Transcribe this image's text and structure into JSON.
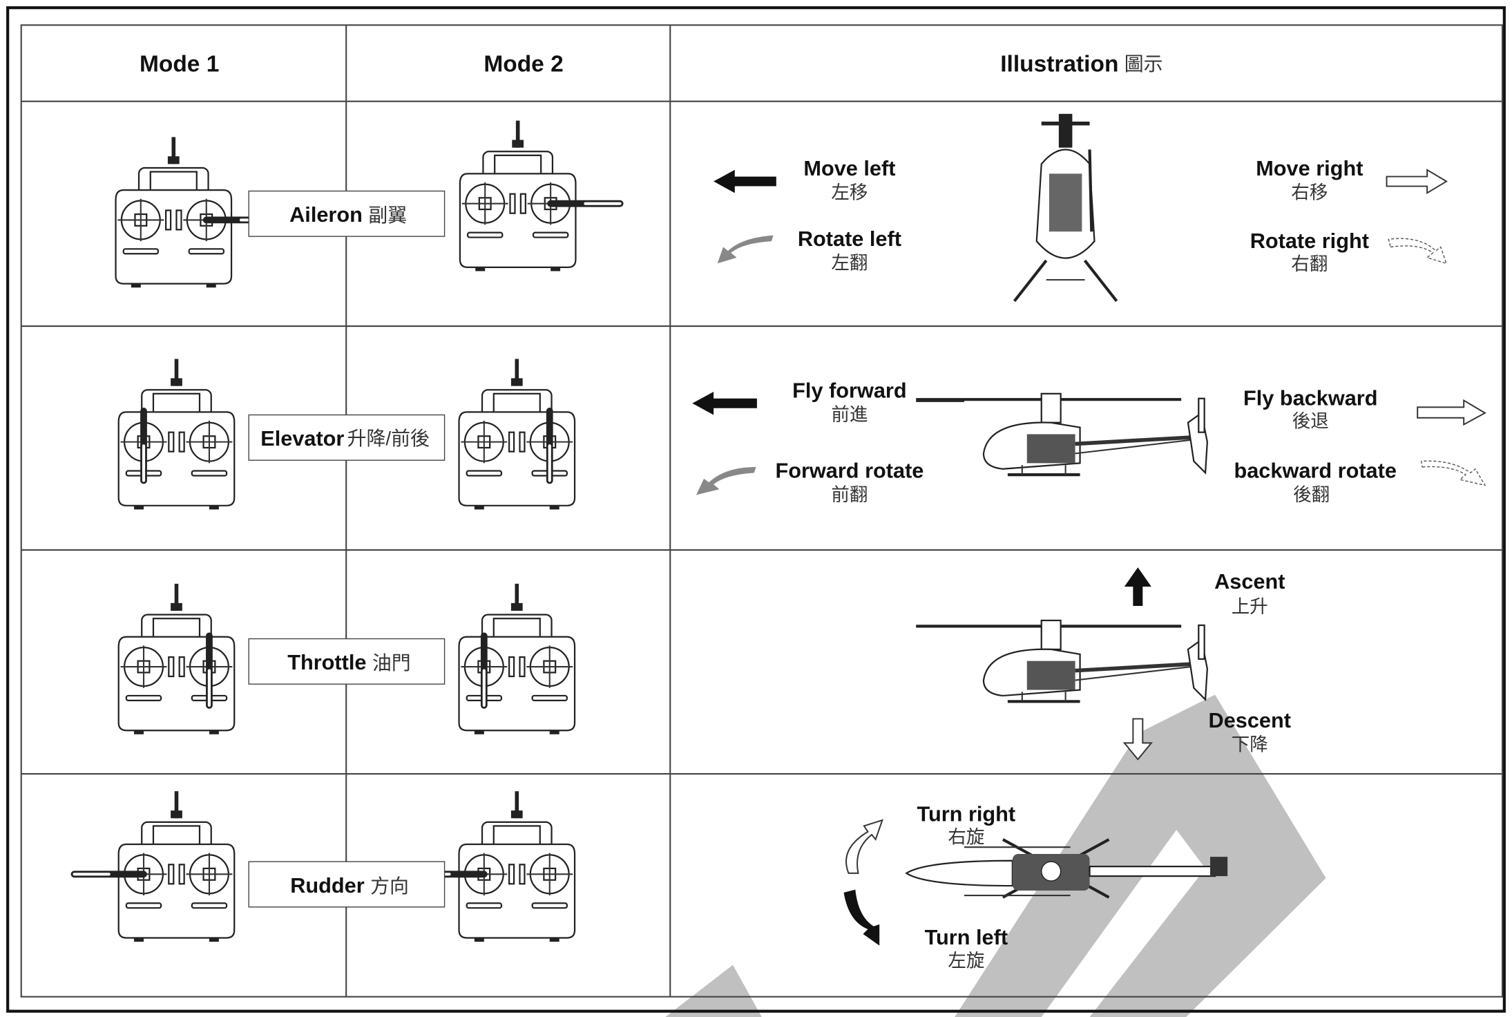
{
  "header": {
    "mode_1": "Mode 1",
    "mode_2": "Mode 2",
    "illustration": "Illustration",
    "illustration_zh": "圖示"
  },
  "rows": [
    {
      "function": "Aileron",
      "function_zh": "副翼",
      "labels": [
        {
          "en": "Move left",
          "zh": "左移"
        },
        {
          "en": "Rotate left",
          "zh": "左翻"
        },
        {
          "en": "Move right",
          "zh": "右移"
        },
        {
          "en": "Rotate right",
          "zh": "右翻"
        }
      ]
    },
    {
      "function": "Elevator",
      "function_zh": "升降/前後",
      "labels": [
        {
          "en": "Fly forward",
          "zh": "前進"
        },
        {
          "en": "Forward rotate",
          "zh": "前翻"
        },
        {
          "en": "Fly backward",
          "zh": "後退"
        },
        {
          "en": "backward rotate",
          "zh": "後翻"
        }
      ]
    },
    {
      "function": "Throttle",
      "function_zh": "油門",
      "labels": [
        {
          "en": "Ascent",
          "zh": "上升"
        },
        {
          "en": "Descent",
          "zh": "下降"
        }
      ]
    },
    {
      "function": "Rudder",
      "function_zh": "方向",
      "labels": [
        {
          "en": "Turn right",
          "zh": "右旋"
        },
        {
          "en": "Turn left",
          "zh": "左旋"
        }
      ]
    }
  ]
}
